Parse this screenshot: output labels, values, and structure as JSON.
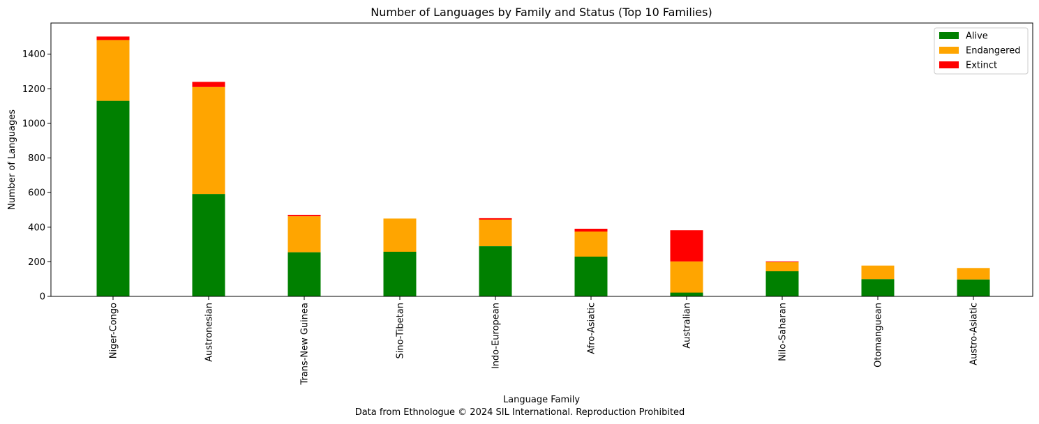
{
  "chart_data": {
    "type": "bar",
    "stacked": true,
    "title": "Number of Languages by Family and Status (Top 10 Families)",
    "xlabel": "Language Family",
    "caption": "Data from Ethnologue © 2024 SIL International. Reproduction Prohibited",
    "ylabel": "Number of Languages",
    "ylim": [
      0,
      1580
    ],
    "yticks": [
      0,
      200,
      400,
      600,
      800,
      1000,
      1200,
      1400
    ],
    "grid": false,
    "legend_position": "top-right",
    "categories": [
      "Niger-Congo",
      "Austronesian",
      "Trans-New Guinea",
      "Sino-Tibetan",
      "Indo-European",
      "Afro-Asiatic",
      "Australian",
      "Nilo-Saharan",
      "Otomanguean",
      "Austro-Asiatic"
    ],
    "series": [
      {
        "name": "Alive",
        "color": "#008000",
        "values": [
          1130,
          592,
          255,
          258,
          290,
          230,
          22,
          145,
          100,
          98
        ]
      },
      {
        "name": "Endangered",
        "color": "#ffa500",
        "values": [
          352,
          618,
          208,
          192,
          154,
          145,
          180,
          53,
          78,
          66
        ]
      },
      {
        "name": "Extinct",
        "color": "#ff0000",
        "values": [
          20,
          30,
          8,
          0,
          8,
          16,
          180,
          4,
          0,
          0
        ]
      }
    ]
  }
}
